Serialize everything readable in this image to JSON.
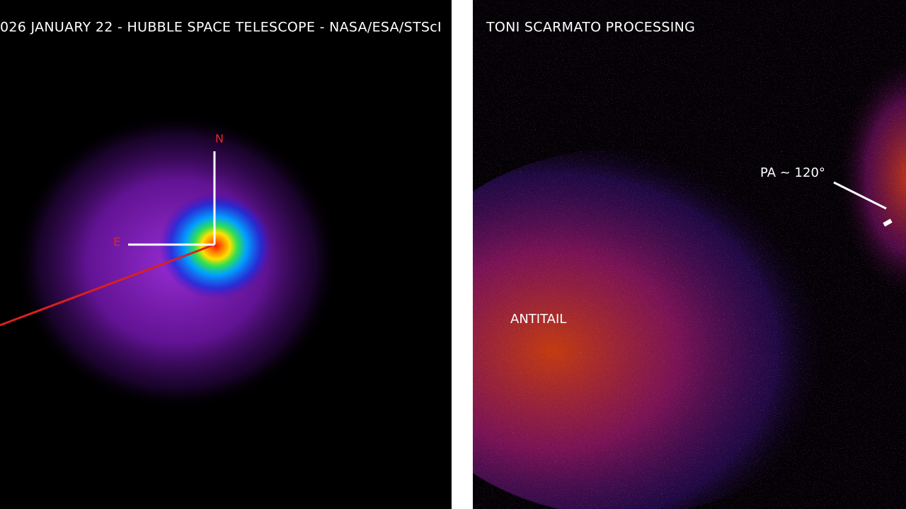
{
  "left_panel": {
    "caption": "026 JANUARY 22 - HUBBLE SPACE TELESCOPE - NASA/ESA/STScI",
    "compass": {
      "north": "N",
      "east": "E"
    }
  },
  "right_panel": {
    "caption": "TONI SCARMATO PROCESSING",
    "position_angle_label": "PA ~ 120°",
    "feature_label": "ANTITAIL"
  }
}
